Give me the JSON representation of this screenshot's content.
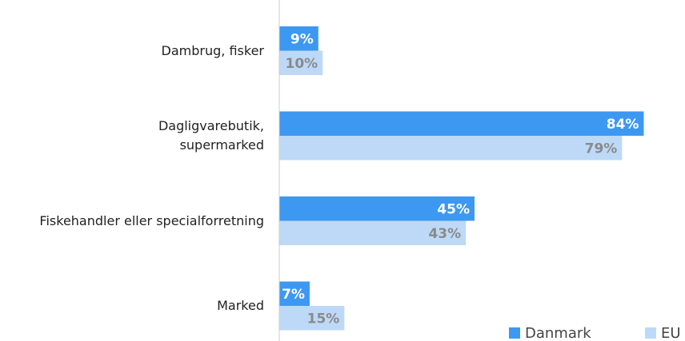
{
  "chart_data": {
    "type": "hbar",
    "categories": [
      "Dambrug, fisker",
      "Dagligvarebutik,\nsupermarked",
      "Fiskehandler eller specialforretning",
      "Marked"
    ],
    "series": [
      {
        "name": "Danmark",
        "color": "#3d98f2",
        "values": [
          9,
          84,
          45,
          7
        ],
        "value_labels": [
          "9%",
          "84%",
          "45%",
          "7%"
        ]
      },
      {
        "name": "EU",
        "color": "#bdd9f7",
        "values": [
          10,
          79,
          43,
          15
        ],
        "value_labels": [
          "10%",
          "79%",
          "43%",
          "15%"
        ]
      }
    ],
    "xlim": [
      0,
      90
    ]
  }
}
